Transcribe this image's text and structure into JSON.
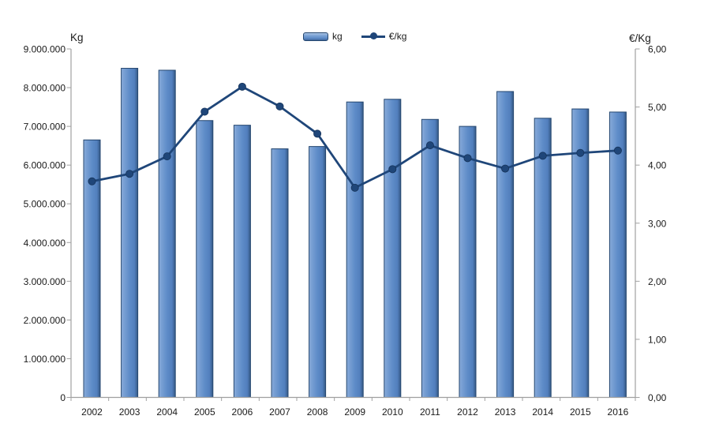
{
  "chart_data": {
    "type": "combo-bar-line",
    "title": "",
    "categories": [
      "2002",
      "2003",
      "2004",
      "2005",
      "2006",
      "2007",
      "2008",
      "2009",
      "2010",
      "2011",
      "2012",
      "2013",
      "2014",
      "2015",
      "2016"
    ],
    "series": [
      {
        "name": "kg",
        "type": "bar",
        "axis": "left",
        "values": [
          6650000,
          8500000,
          8450000,
          7150000,
          7030000,
          6420000,
          6480000,
          7630000,
          7700000,
          7180000,
          7000000,
          7900000,
          7210000,
          7450000,
          7370000
        ]
      },
      {
        "name": "€/kg",
        "type": "line",
        "axis": "right",
        "values": [
          3.72,
          3.85,
          4.15,
          4.92,
          5.35,
          5.01,
          4.54,
          3.61,
          3.93,
          4.34,
          4.12,
          3.94,
          4.16,
          4.21,
          4.25
        ]
      }
    ],
    "left_axis": {
      "title": "Kg",
      "min": 0,
      "max": 9000000,
      "step": 1000000,
      "tick_labels": [
        "9.000.000",
        "8.000.000",
        "7.000.000",
        "6.000.000",
        "5.000.000",
        "4.000.000",
        "3.000.000",
        "2.000.000",
        "1.000.000",
        "0"
      ]
    },
    "right_axis": {
      "title": "€/Kg",
      "min": 0,
      "max": 6,
      "step": 1,
      "tick_labels": [
        "6,00",
        "5,00",
        "4,00",
        "3,00",
        "2,00",
        "1,00",
        "0,00"
      ]
    },
    "legend": {
      "position": "top-center",
      "items": [
        {
          "label": "kg",
          "marker": "bar"
        },
        {
          "label": "€/kg",
          "marker": "line-dot"
        }
      ]
    },
    "grid": false,
    "colors": {
      "bar_fill": "#5E8CC8",
      "bar_fill_light": "#8FB0DC",
      "bar_fill_dark": "#35597F",
      "bar_border": "#24466F",
      "line": "#1F4679",
      "axis_line": "#A0A0A0",
      "text": "#1A1A1A",
      "background": "#FFFFFF"
    }
  }
}
